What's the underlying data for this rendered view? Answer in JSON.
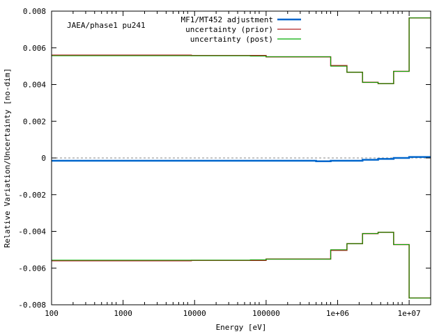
{
  "chart_data": {
    "type": "line",
    "title": "",
    "annotation": "JAEA/phase1 pu241",
    "xlabel": "Energy [eV]",
    "ylabel": "Relative Variation/Uncertainty [no-dim]",
    "xscale": "log",
    "xlim": [
      100,
      20000000
    ],
    "ylim": [
      -0.008,
      0.008
    ],
    "x_ticks": [
      100,
      1000,
      10000,
      100000,
      1000000,
      10000000
    ],
    "x_tick_labels": [
      "100",
      "1000",
      "10000",
      "100000",
      "1e+06",
      "1e+07"
    ],
    "y_ticks": [
      -0.008,
      -0.006,
      -0.004,
      -0.002,
      0,
      0.002,
      0.004,
      0.006,
      0.008
    ],
    "y_tick_labels": [
      "-0.008",
      "-0.006",
      "-0.004",
      "-0.002",
      "0",
      "0.002",
      "0.004",
      "0.006",
      "0.008"
    ],
    "legend_position": "top-right",
    "zero_line": true,
    "series": [
      {
        "name": "MF1/MT452 adjustment",
        "color": "#0066cc",
        "style": "step",
        "x": [
          100,
          9000,
          80000,
          500000,
          800000,
          1350000,
          2230000,
          3680000,
          6070000,
          10000000,
          20000000
        ],
        "y": [
          -0.00015,
          -0.00015,
          -0.00015,
          -0.00018,
          -0.00015,
          -0.00015,
          -0.0001,
          -5e-05,
          0.0,
          5e-05,
          5e-05
        ]
      },
      {
        "name": "uncertainty (prior)",
        "color": "#b22222",
        "style": "step-symmetric",
        "x": [
          100,
          9000,
          60000,
          100000,
          800000,
          1350000,
          2230000,
          3680000,
          6070000,
          10000000,
          20000000
        ],
        "y": [
          0.0056,
          0.00558,
          0.00558,
          0.00551,
          0.00503,
          0.00467,
          0.00412,
          0.00405,
          0.00472,
          0.00763,
          0.00763
        ]
      },
      {
        "name": "uncertainty (post)",
        "color": "#00aa00",
        "style": "step-symmetric",
        "x": [
          100,
          9000,
          60000,
          100000,
          800000,
          1350000,
          2230000,
          3680000,
          6070000,
          10000000,
          20000000
        ],
        "y": [
          0.00557,
          0.00557,
          0.00555,
          0.00551,
          0.005,
          0.00467,
          0.00412,
          0.00405,
          0.00472,
          0.00763,
          0.00763
        ]
      }
    ]
  }
}
